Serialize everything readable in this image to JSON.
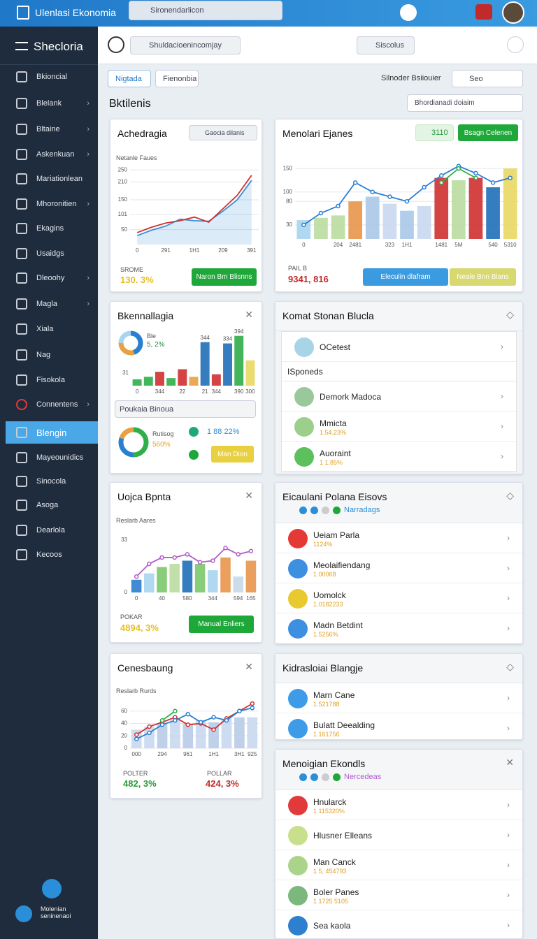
{
  "topbar": {
    "title": "Ulenlasi Ekonomia",
    "search": "Sironendarlicon"
  },
  "sidebar": {
    "title": "Shecloria",
    "active": 14,
    "footer": "Molenian seninenaoi",
    "items": [
      {
        "label": "Bkioncial",
        "arrow": false
      },
      {
        "label": "Blelank",
        "arrow": true
      },
      {
        "label": "Bltaine",
        "arrow": true
      },
      {
        "label": "Askenkuan",
        "arrow": true
      },
      {
        "label": "Mariationlean",
        "arrow": false
      },
      {
        "label": "Mhoronitien",
        "arrow": true
      },
      {
        "label": "Ekagins",
        "arrow": false
      },
      {
        "label": "Usaidgs",
        "arrow": false
      },
      {
        "label": "Dleoohy",
        "arrow": true
      },
      {
        "label": "Magla",
        "arrow": true
      },
      {
        "label": "Xiala",
        "arrow": false
      },
      {
        "label": "Nag",
        "arrow": false
      },
      {
        "label": "Fisokola",
        "arrow": false
      },
      {
        "label": "Connentens",
        "arrow": true
      },
      {
        "label": "Blengin",
        "arrow": false
      },
      {
        "label": "Mayeounidics",
        "arrow": false
      },
      {
        "label": "Sinocola",
        "arrow": false
      },
      {
        "label": "Asoga",
        "arrow": false
      },
      {
        "label": "Dearlola",
        "arrow": false
      },
      {
        "label": "Kecoos",
        "arrow": false
      }
    ]
  },
  "toolbar": {
    "search": "Shuldacioenincomjay",
    "button": "Siscolus"
  },
  "tabs": [
    "Nigtada",
    "Fienonbia"
  ],
  "tools": {
    "link": "Silnoder Bsiiouier",
    "search": "Seo"
  },
  "heading": "Bktilenis",
  "filter": "Bhordianadi doiaim",
  "cards": [
    {
      "title": "Achedragia",
      "chip": "Gaocia dilanis",
      "subtitle": "Netanle Faues",
      "stat_label": "SROME",
      "stat": "130. 3%",
      "button": "Naron Bm Blisnns",
      "chart": {
        "type": "line",
        "categories": [
          "0",
          null,
          "291",
          null,
          "1H1",
          null,
          "209",
          null,
          "391"
        ],
        "ylim": [
          0,
          260
        ],
        "yticks": [
          50,
          101,
          150,
          210,
          250
        ],
        "grid": true,
        "series": [
          {
            "name": null,
            "color": "#3a8fd6",
            "area": true,
            "values": [
              30,
              48,
              62,
              85,
              80,
              78,
              112,
              150,
              215
            ]
          },
          {
            "name": null,
            "color": "#d03030",
            "values": [
              40,
              58,
              72,
              80,
              92,
              75,
              120,
              165,
              232
            ]
          }
        ]
      }
    },
    {
      "title": "Menolari Ejanes",
      "badge": "3110",
      "button": "Bsagn Celenen",
      "stat_label": "PAIL B",
      "stat": "9341, 816",
      "buttons": [
        "Eleculin dlafram",
        "Neale Bnn Blans"
      ],
      "chart": {
        "type": "combo",
        "categories": [
          "0",
          null,
          "204",
          "2481",
          null,
          "323",
          "1H1",
          null,
          "1481",
          "5M",
          null,
          "540",
          "5310"
        ],
        "ylim": [
          0,
          180
        ],
        "yticks": [
          30,
          80,
          100,
          150
        ],
        "grid": true,
        "series": [
          {
            "name": null,
            "type": "bar",
            "colors": [
              "#a8d4f0",
              "#b9dca0",
              "#b9dca0",
              "#e8964a",
              "#a8c8e8",
              "#c8d8f0",
              "#a8c8e8",
              "#c8d8f0",
              "#d03030",
              "#b9dca0",
              "#d03030",
              "#1f6fb8",
              "#e8d860"
            ],
            "values": [
              40,
              45,
              50,
              80,
              90,
              75,
              60,
              70,
              130,
              125,
              130,
              110,
              150
            ]
          },
          {
            "name": null,
            "type": "line",
            "color": "#2a7fd0",
            "markers": true,
            "values": [
              30,
              55,
              70,
              120,
              100,
              90,
              80,
              110,
              135,
              155,
              140,
              120,
              130
            ]
          },
          {
            "name": null,
            "type": "line",
            "color": "#2fae4a",
            "markers": true,
            "values": [
              null,
              null,
              null,
              null,
              null,
              null,
              null,
              null,
              120,
              150,
              130,
              null,
              null
            ]
          }
        ]
      }
    },
    {
      "title": "Bkennallagia",
      "donut_label": "Ble",
      "donut_value": "5, 2%",
      "section": "Poukaia Binoua",
      "donut2_label": "Rutisog",
      "donut2_value": "560%",
      "stat": "1 88 22%",
      "button": "Man Dion",
      "donut": {
        "type": "pie",
        "values": [
          45,
          30,
          25
        ],
        "colors": [
          "#2a7fd0",
          "#e8a040",
          "#a8d4f0"
        ]
      },
      "donut2": {
        "type": "pie",
        "values": [
          50,
          30,
          20
        ],
        "colors": [
          "#2fae4a",
          "#2a7fd0",
          "#e8a040"
        ]
      },
      "chart": {
        "type": "bar",
        "categories": [
          "0",
          null,
          "344",
          null,
          "22",
          null,
          "21",
          "344",
          null,
          "390",
          "300"
        ],
        "ylim": [
          0,
          420
        ],
        "yticks": [
          {
            "value": 100,
            "label": "31"
          }
        ],
        "grid": false,
        "series": [
          {
            "name": null,
            "type": "bar",
            "colors": [
              "#2fae4a",
              "#2fae4a",
              "#d03030",
              "#2fae4a",
              "#d03030",
              "#e8a040",
              "#1f6fb8",
              "#d03030",
              "#1f6fb8",
              "#2fae4a",
              "#e8d860"
            ],
            "values": [
              50,
              70,
              110,
              60,
              130,
              70,
              344,
              90,
              334,
              394,
              200
            ],
            "value_labels": [
              null,
              null,
              null,
              null,
              null,
              null,
              "344",
              null,
              "334",
              "394",
              null
            ]
          }
        ]
      }
    },
    {
      "title": "Uojca Bpnta",
      "subtitle": "Reslarb Aares",
      "stat_label": "POKAR",
      "stat": "4894, 3%",
      "button": "Manual Enliers",
      "chart": {
        "type": "combo",
        "categories": [
          "0",
          null,
          "40",
          null,
          "580",
          null,
          "344",
          null,
          "594",
          "165"
        ],
        "ylim": [
          0,
          40
        ],
        "yticks": [
          0,
          33
        ],
        "grid": false,
        "series": [
          {
            "name": null,
            "type": "bar",
            "colors": [
              "#2a7fd0",
              "#a8d4f0",
              "#7cc86c",
              "#b9dca0",
              "#1f6fb8",
              "#7cc86c",
              "#a8d4f0",
              "#e8964a",
              "#c8d8e8",
              "#e8964a"
            ],
            "values": [
              8,
              12,
              16,
              18,
              20,
              18,
              14,
              22,
              10,
              20
            ]
          },
          {
            "name": null,
            "type": "line",
            "color": "#b05cc8",
            "markers": true,
            "values": [
              10,
              18,
              22,
              22,
              24,
              19,
              20,
              28,
              24,
              26
            ]
          }
        ]
      }
    },
    {
      "title": "Cenesbaung",
      "subtitle": "Reslarb Rurds",
      "stats": [
        {
          "label": "POLTER",
          "value": "482, 3%"
        },
        {
          "label": "POLLAR",
          "value": "424, 3%"
        }
      ],
      "chart": {
        "type": "combo",
        "categories": [
          "000",
          null,
          "294",
          null,
          "961",
          null,
          "1H1",
          null,
          "3H1",
          "925"
        ],
        "ylim": [
          0,
          80
        ],
        "yticks": [
          0,
          20,
          40,
          60
        ],
        "grid": true,
        "series": [
          {
            "name": null,
            "type": "bar",
            "colors": [
              "#c8d8f0",
              "#c8d8f0",
              "#b8cce8",
              "#c8d8f0",
              "#b8cce8",
              "#c8d8f0",
              "#b8cce8",
              "#c8d8f0",
              "#b8cce8",
              "#c8d8f0"
            ],
            "values": [
              30,
              35,
              40,
              45,
              40,
              45,
              42,
              48,
              50,
              50
            ]
          },
          {
            "name": null,
            "type": "line",
            "color": "#d03030",
            "markers": true,
            "values": [
              22,
              35,
              42,
              50,
              38,
              40,
              30,
              48,
              60,
              72
            ]
          },
          {
            "name": null,
            "type": "line",
            "color": "#2a7fd0",
            "markers": true,
            "values": [
              15,
              25,
              38,
              45,
              55,
              42,
              50,
              45,
              60,
              65
            ]
          },
          {
            "name": null,
            "type": "line",
            "color": "#2fae4a",
            "markers": true,
            "values": [
              null,
              null,
              45,
              60,
              null,
              null,
              null,
              null,
              null,
              null
            ]
          }
        ]
      }
    }
  ],
  "lists": [
    {
      "title": "Komat Stonan Blucla",
      "items": [
        {
          "title": "OCetest",
          "sub": null,
          "color": "#a8d4e8"
        }
      ],
      "section": "ISponeds",
      "section_items": [
        {
          "title": "Demork Madoca",
          "sub": null,
          "color": "#9bc89b"
        },
        {
          "title": "Mmicta",
          "sub": "1.54.23%",
          "color": "#9ccf8c"
        },
        {
          "title": "Auoraint",
          "sub": "1 1.85%",
          "color": "#5cc05c"
        }
      ]
    },
    {
      "title": "Eicaulani Polana Eisovs",
      "tag": "Narradags",
      "items": [
        {
          "title": "Ueiam Parla",
          "sub": "1124%",
          "color": "#e53935"
        },
        {
          "title": "Meolaifiendang",
          "sub": "1.00068",
          "color": "#3d8fe0"
        },
        {
          "title": "Uomolck",
          "sub": "1.0182233",
          "color": "#e8c930"
        },
        {
          "title": "Madn Betdint",
          "sub": "1.5256%",
          "color": "#3d8fe0"
        }
      ]
    },
    {
      "title": "Kidrasloiai Blangje",
      "items": [
        {
          "title": "Marn Cane",
          "sub": "1.521788",
          "color": "#3d9be8"
        },
        {
          "title": "Bulatt Deealding",
          "sub": "1.161756",
          "color": "#3d9be8"
        }
      ]
    },
    {
      "title": "Menoigian Ekondls",
      "tag": "Nercedeas",
      "items": [
        {
          "title": "Hnularck",
          "sub": "1 115320%",
          "color": "#e23a3a"
        },
        {
          "title": "Hlusner Elleans",
          "sub": null,
          "color": "#c8e08c"
        },
        {
          "title": "Man Canck",
          "sub": "1 5, 454793",
          "color": "#a9d48a"
        },
        {
          "title": "Boler Panes",
          "sub": "1 1725 5105",
          "color": "#7cb87c"
        },
        {
          "title": "Sea kaola",
          "sub": null,
          "color": "#2f7fd0"
        }
      ]
    }
  ]
}
